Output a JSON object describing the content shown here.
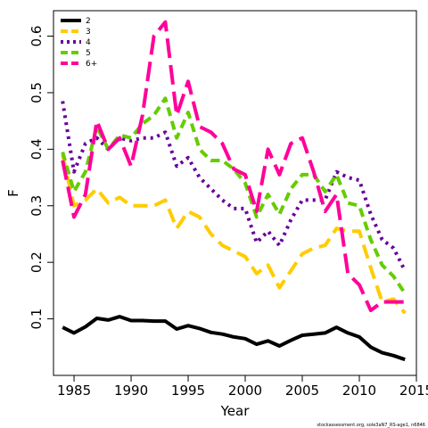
{
  "chart_data": {
    "type": "line",
    "xlabel": "Year",
    "ylabel": "F",
    "xlim": [
      1983.2,
      2015
    ],
    "ylim": [
      0.0,
      0.645
    ],
    "x_ticks": [
      1985,
      1990,
      1995,
      2000,
      2005,
      2010,
      2015
    ],
    "x_tick_labels": [
      "1985",
      "1990",
      "1995",
      "2000",
      "2005",
      "2010",
      "2015"
    ],
    "y_ticks": [
      0.1,
      0.2,
      0.3,
      0.4,
      0.5,
      0.6
    ],
    "y_tick_labels": [
      "0.1",
      "0.2",
      "0.3",
      "0.4",
      "0.5",
      "0.6"
    ],
    "grid": false,
    "legend_position": "top-left",
    "footnote": "stockassessment.org, sole3aN7_RS-age1, n6846",
    "series": [
      {
        "name": "2",
        "color": "#000000",
        "dash": "solid",
        "x": [
          1984,
          1985,
          1986,
          1987,
          1988,
          1989,
          1990,
          1991,
          1992,
          1993,
          1994,
          1995,
          1996,
          1997,
          1998,
          1999,
          2000,
          2001,
          2002,
          2003,
          2004,
          2005,
          2006,
          2007,
          2008,
          2009,
          2010,
          2011,
          2012,
          2013,
          2014
        ],
        "y": [
          0.085,
          0.075,
          0.086,
          0.101,
          0.098,
          0.104,
          0.097,
          0.097,
          0.096,
          0.096,
          0.082,
          0.088,
          0.083,
          0.076,
          0.073,
          0.068,
          0.065,
          0.055,
          0.061,
          0.052,
          0.062,
          0.071,
          0.073,
          0.075,
          0.085,
          0.075,
          0.068,
          0.05,
          0.04,
          0.035,
          0.028
        ]
      },
      {
        "name": "3",
        "color": "#ffcc00",
        "dash": "long",
        "x": [
          1984,
          1985,
          1986,
          1987,
          1988,
          1989,
          1990,
          1991,
          1992,
          1993,
          1994,
          1995,
          1996,
          1997,
          1998,
          1999,
          2000,
          2001,
          2002,
          2003,
          2004,
          2005,
          2006,
          2007,
          2008,
          2009,
          2010,
          2011,
          2012,
          2013,
          2014
        ],
        "y": [
          0.39,
          0.3,
          0.31,
          0.33,
          0.305,
          0.315,
          0.3,
          0.3,
          0.3,
          0.31,
          0.26,
          0.29,
          0.28,
          0.25,
          0.23,
          0.22,
          0.21,
          0.18,
          0.195,
          0.155,
          0.185,
          0.215,
          0.225,
          0.23,
          0.26,
          0.255,
          0.255,
          0.19,
          0.13,
          0.135,
          0.11
        ]
      },
      {
        "name": "4",
        "color": "#660099",
        "dash": "dot",
        "x": [
          1984,
          1985,
          1986,
          1987,
          1988,
          1989,
          1990,
          1991,
          1992,
          1993,
          1994,
          1995,
          1996,
          1997,
          1998,
          1999,
          2000,
          2001,
          2002,
          2003,
          2004,
          2005,
          2006,
          2007,
          2008,
          2009,
          2010,
          2011,
          2012,
          2013,
          2014
        ],
        "y": [
          0.485,
          0.36,
          0.41,
          0.42,
          0.4,
          0.42,
          0.415,
          0.42,
          0.42,
          0.43,
          0.37,
          0.385,
          0.35,
          0.33,
          0.31,
          0.295,
          0.295,
          0.235,
          0.255,
          0.23,
          0.275,
          0.31,
          0.31,
          0.31,
          0.36,
          0.35,
          0.345,
          0.285,
          0.24,
          0.225,
          0.185
        ]
      },
      {
        "name": "5",
        "color": "#66cc00",
        "dash": "medium",
        "x": [
          1984,
          1985,
          1986,
          1987,
          1988,
          1989,
          1990,
          1991,
          1992,
          1993,
          1994,
          1995,
          1996,
          1997,
          1998,
          1999,
          2000,
          2001,
          2002,
          2003,
          2004,
          2005,
          2006,
          2007,
          2008,
          2009,
          2010,
          2011,
          2012,
          2013,
          2014
        ],
        "y": [
          0.395,
          0.325,
          0.36,
          0.44,
          0.4,
          0.425,
          0.42,
          0.445,
          0.46,
          0.49,
          0.42,
          0.465,
          0.4,
          0.38,
          0.38,
          0.365,
          0.34,
          0.28,
          0.32,
          0.285,
          0.33,
          0.355,
          0.355,
          0.325,
          0.355,
          0.305,
          0.3,
          0.24,
          0.195,
          0.175,
          0.145
        ]
      },
      {
        "name": "6+",
        "color": "#ff0099",
        "dash": "longest",
        "x": [
          1984,
          1985,
          1986,
          1987,
          1988,
          1989,
          1990,
          1991,
          1992,
          1993,
          1994,
          1995,
          1996,
          1997,
          1998,
          1999,
          2000,
          2001,
          2002,
          2003,
          2004,
          2005,
          2006,
          2007,
          2008,
          2009,
          2010,
          2011,
          2012,
          2013,
          2014
        ],
        "y": [
          0.38,
          0.28,
          0.32,
          0.45,
          0.4,
          0.42,
          0.37,
          0.46,
          0.6,
          0.625,
          0.46,
          0.52,
          0.44,
          0.43,
          0.41,
          0.365,
          0.355,
          0.29,
          0.4,
          0.355,
          0.41,
          0.42,
          0.36,
          0.29,
          0.32,
          0.18,
          0.16,
          0.115,
          0.13,
          0.13,
          0.13
        ]
      }
    ]
  }
}
